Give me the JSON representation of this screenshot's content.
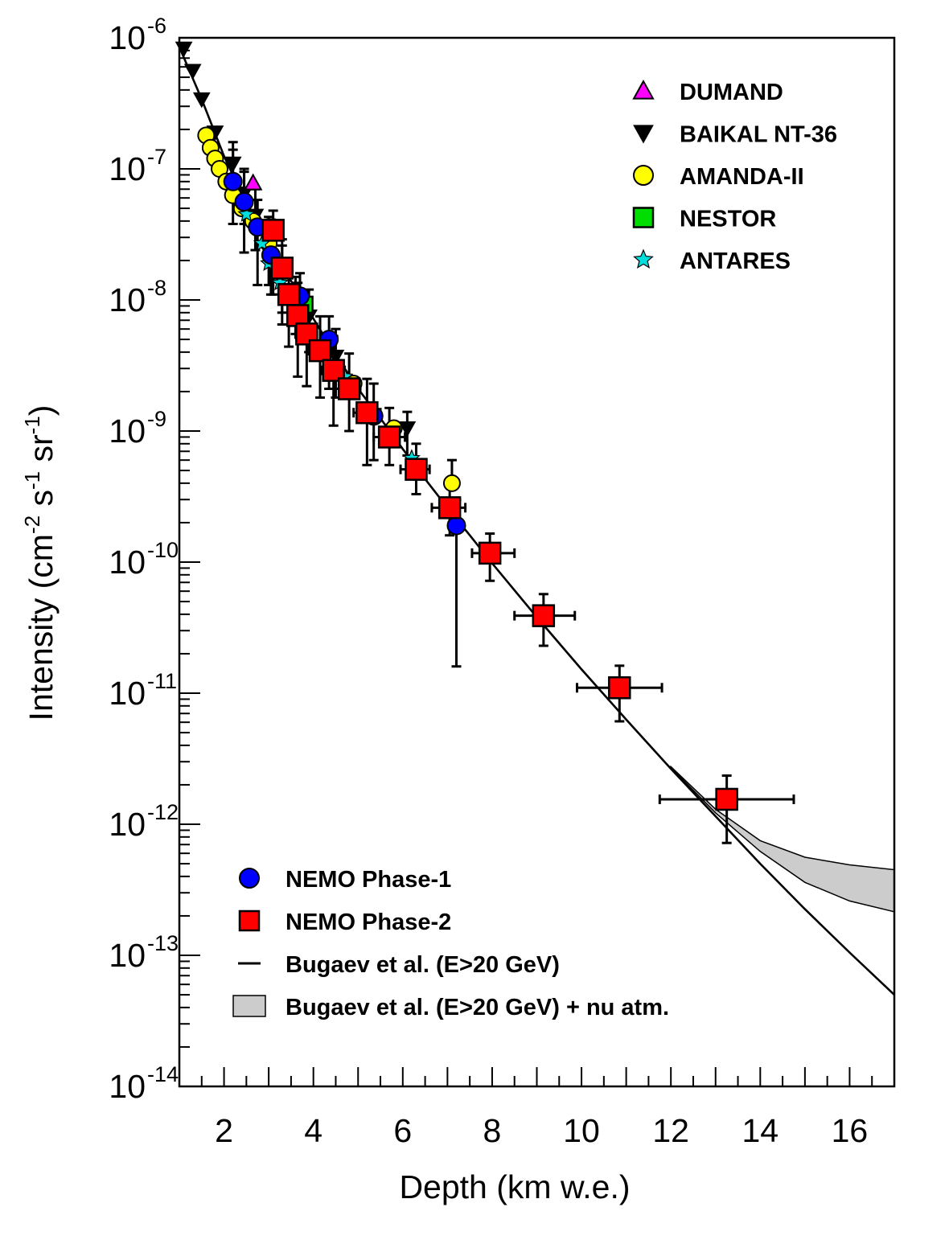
{
  "chart_data": {
    "type": "scatter",
    "title": "",
    "xlabel": "Depth (km w.e.)",
    "ylabel": "Intensity (cm^-2 s^-1 sr^-1)",
    "ylabel_parts": [
      "Intensity (cm",
      "-2",
      " s",
      "-1",
      " sr",
      "-1",
      ")"
    ],
    "xlim": [
      1,
      17
    ],
    "ylim_log10": [
      -14,
      -6
    ],
    "x_ticks": [
      "2",
      "4",
      "6",
      "8",
      "10",
      "12",
      "14",
      "16"
    ],
    "x_tick_values": [
      2,
      4,
      6,
      8,
      10,
      12,
      14,
      16
    ],
    "y_ticks": [
      {
        "base": "10",
        "exp": "-6",
        "value": -6
      },
      {
        "base": "10",
        "exp": "-7",
        "value": -7
      },
      {
        "base": "10",
        "exp": "-8",
        "value": -8
      },
      {
        "base": "10",
        "exp": "-9",
        "value": -9
      },
      {
        "base": "10",
        "exp": "-10",
        "value": -10
      },
      {
        "base": "10",
        "exp": "-11",
        "value": -11
      },
      {
        "base": "10",
        "exp": "-12",
        "value": -12
      },
      {
        "base": "10",
        "exp": "-13",
        "value": -13
      },
      {
        "base": "10",
        "exp": "-14",
        "value": -14
      }
    ],
    "legend_top": [
      {
        "label": "DUMAND",
        "marker": "triangle-up",
        "color": "#ff00ff"
      },
      {
        "label": "BAIKAL NT-36",
        "marker": "triangle-down",
        "color": "#000000"
      },
      {
        "label": "AMANDA-II",
        "marker": "circle",
        "color": "#ffff00"
      },
      {
        "label": "NESTOR",
        "marker": "square",
        "color": "#00dd00"
      },
      {
        "label": "ANTARES",
        "marker": "star",
        "color": "#00dddd"
      }
    ],
    "legend_bottom": [
      {
        "label": "NEMO Phase-1",
        "marker": "circle",
        "color": "#0000ff"
      },
      {
        "label": "NEMO Phase-2",
        "marker": "square",
        "color": "#ff0000"
      },
      {
        "label": "Bugaev et al. (E>20 GeV)",
        "marker": "line",
        "color": "#000000"
      },
      {
        "label": "Bugaev et al. (E>20 GeV) + nu atm.",
        "marker": "band",
        "color": "#cccccc"
      }
    ],
    "series": [
      {
        "name": "BAIKAL NT-36",
        "marker": "triangle-down",
        "color": "#000000",
        "points": [
          [
            1.1,
            8.3e-07,
            null,
            null
          ],
          [
            1.3,
            5.6e-07,
            null,
            null
          ],
          [
            1.5,
            3.4e-07,
            null,
            null
          ],
          [
            1.8,
            1.9e-07,
            null,
            null
          ],
          [
            2.2,
            1.1e-07,
            1.6e-07,
            6e-08
          ],
          [
            2.45,
            6.5e-08,
            1e-07,
            3.8e-08
          ],
          [
            2.7,
            4.4e-08,
            7e-08,
            2.4e-08
          ],
          [
            3.0,
            2.6e-08,
            4.3e-08,
            1.3e-08
          ],
          [
            3.3,
            1.6e-08,
            2.6e-08,
            8e-09
          ],
          [
            3.6,
            1e-08,
            1.5e-08,
            5.5e-09
          ],
          [
            3.9,
            7.5e-09,
            1.2e-08,
            4e-09
          ],
          [
            4.5,
            3.7e-09,
            6e-09,
            1.8e-09
          ],
          [
            6.1,
            1.05e-09,
            1.4e-09,
            6.5e-10
          ]
        ]
      },
      {
        "name": "AMANDA-II",
        "marker": "circle",
        "color": "#ffff00",
        "points": [
          [
            1.6,
            1.8e-07,
            null,
            null
          ],
          [
            1.7,
            1.45e-07,
            null,
            null
          ],
          [
            1.8,
            1.2e-07,
            null,
            null
          ],
          [
            1.9,
            1e-07,
            null,
            null
          ],
          [
            2.05,
            8e-08,
            null,
            null
          ],
          [
            2.2,
            6.3e-08,
            null,
            null
          ],
          [
            2.4,
            5e-08,
            null,
            null
          ],
          [
            2.65,
            4e-08,
            null,
            null
          ],
          [
            3.0,
            2.7e-08,
            null,
            null
          ],
          [
            4.9,
            2.3e-09,
            null,
            null
          ],
          [
            5.8,
            1.05e-09,
            null,
            null
          ],
          [
            7.1,
            4e-10,
            6e-10,
            null
          ]
        ]
      },
      {
        "name": "DUMAND",
        "marker": "triangle-up",
        "color": "#ff00ff",
        "points": [
          [
            2.65,
            7.8e-08,
            null,
            null
          ]
        ]
      },
      {
        "name": "NESTOR",
        "marker": "square",
        "color": "#00dd00",
        "points": [
          [
            3.8,
            9.2e-09,
            null,
            null
          ]
        ]
      },
      {
        "name": "ANTARES",
        "marker": "star",
        "color": "#00dddd",
        "points": [
          [
            2.5,
            4.5e-08,
            null,
            null
          ],
          [
            2.85,
            2.7e-08,
            null,
            null
          ],
          [
            3.0,
            1.9e-08,
            null,
            null
          ],
          [
            3.25,
            1.35e-08,
            null,
            null
          ],
          [
            3.6,
            9e-09,
            null,
            null
          ],
          [
            4.7,
            2.6e-09,
            null,
            null
          ],
          [
            6.2,
            6.2e-10,
            null,
            null
          ]
        ]
      },
      {
        "name": "NEMO Phase-1",
        "marker": "circle",
        "color": "#0000ff",
        "points": [
          [
            2.2,
            8e-08,
            1.4e-07,
            3.8e-08
          ],
          [
            2.45,
            5.6e-08,
            9.5e-08,
            2.3e-08
          ],
          [
            2.75,
            3.6e-08,
            5.8e-08,
            1.3e-08
          ],
          [
            3.05,
            2.2e-08,
            4.1e-08,
            1.1e-08
          ],
          [
            3.7,
            1.07e-08,
            1.6e-08,
            5e-09
          ],
          [
            4.35,
            5e-09,
            7.5e-09,
            2.1e-09
          ],
          [
            5.35,
            1.3e-09,
            2.3e-09,
            6e-10
          ],
          [
            7.2,
            1.9e-10,
            3e-10,
            1.6e-11
          ]
        ]
      },
      {
        "name": "NEMO Phase-2",
        "marker": "square",
        "color": "#ff0000",
        "points": [
          [
            3.1,
            3.4e-08,
            4.8e-08,
            1.1e-08,
            2.9,
            3.3
          ],
          [
            3.3,
            1.75e-08,
            2.9e-08,
            6.5e-09,
            3.1,
            3.5
          ],
          [
            3.45,
            1.1e-08,
            1.65e-08,
            4.4e-09,
            3.25,
            3.65
          ],
          [
            3.65,
            7.6e-09,
            1.35e-08,
            2.6e-09,
            3.45,
            3.85
          ],
          [
            3.85,
            5.5e-09,
            1.02e-08,
            2.2e-09,
            3.6,
            4.05
          ],
          [
            4.15,
            4.1e-09,
            7.5e-09,
            1.8e-09,
            3.9,
            4.4
          ],
          [
            4.45,
            2.9e-09,
            5.3e-09,
            1.1e-09,
            4.2,
            4.7
          ],
          [
            4.8,
            2.1e-09,
            3.9e-09,
            1e-09,
            4.5,
            5.05
          ],
          [
            5.2,
            1.38e-09,
            2.5e-09,
            5.5e-10,
            4.9,
            5.5
          ],
          [
            5.7,
            9e-10,
            1.5e-09,
            5.5e-10,
            5.35,
            6.05
          ],
          [
            6.3,
            5.1e-10,
            8e-10,
            3.3e-10,
            5.95,
            6.6
          ],
          [
            7.05,
            2.6e-10,
            4e-10,
            1.6e-10,
            6.65,
            7.4
          ],
          [
            7.95,
            1.17e-10,
            1.65e-10,
            7.2e-11,
            7.55,
            8.5
          ],
          [
            9.15,
            3.9e-11,
            5.7e-11,
            2.3e-11,
            8.5,
            9.85
          ],
          [
            10.85,
            1.1e-11,
            1.62e-11,
            6.1e-12,
            9.9,
            11.8
          ],
          [
            13.25,
            1.55e-12,
            2.35e-12,
            7.2e-13,
            11.75,
            14.75
          ]
        ]
      }
    ],
    "model_curve": {
      "name": "Bugaev et al. (E>20 GeV)",
      "x": [
        1,
        1.5,
        2,
        2.5,
        3,
        3.5,
        4,
        4.5,
        5,
        5.5,
        6,
        6.5,
        7,
        7.5,
        8,
        9,
        10,
        11,
        12,
        13,
        14,
        15,
        16,
        17
      ],
      "y": [
        8.5e-07,
        3.4e-07,
        1.25e-07,
        5.4e-08,
        2.7e-08,
        1.4e-08,
        7.2e-09,
        3.8e-09,
        2.1e-09,
        1.25e-09,
        7.3e-10,
        4.3e-10,
        2.6e-10,
        1.6e-10,
        9.8e-11,
        3.8e-11,
        1.52e-11,
        6.3e-12,
        2.65e-12,
        1.15e-12,
        5e-13,
        2.25e-13,
        1.05e-13,
        5e-14
      ]
    },
    "band": {
      "name": "Bugaev et al. (E>20 GeV) + nu atm.",
      "x": [
        12,
        13,
        14,
        15,
        16,
        17
      ],
      "upper": [
        2.75e-12,
        1.3e-12,
        7.5e-13,
        5.6e-13,
        4.9e-13,
        4.5e-13
      ],
      "lower": [
        2.7e-12,
        1.22e-12,
        6.2e-13,
        3.6e-13,
        2.6e-13,
        2.15e-13
      ]
    }
  }
}
